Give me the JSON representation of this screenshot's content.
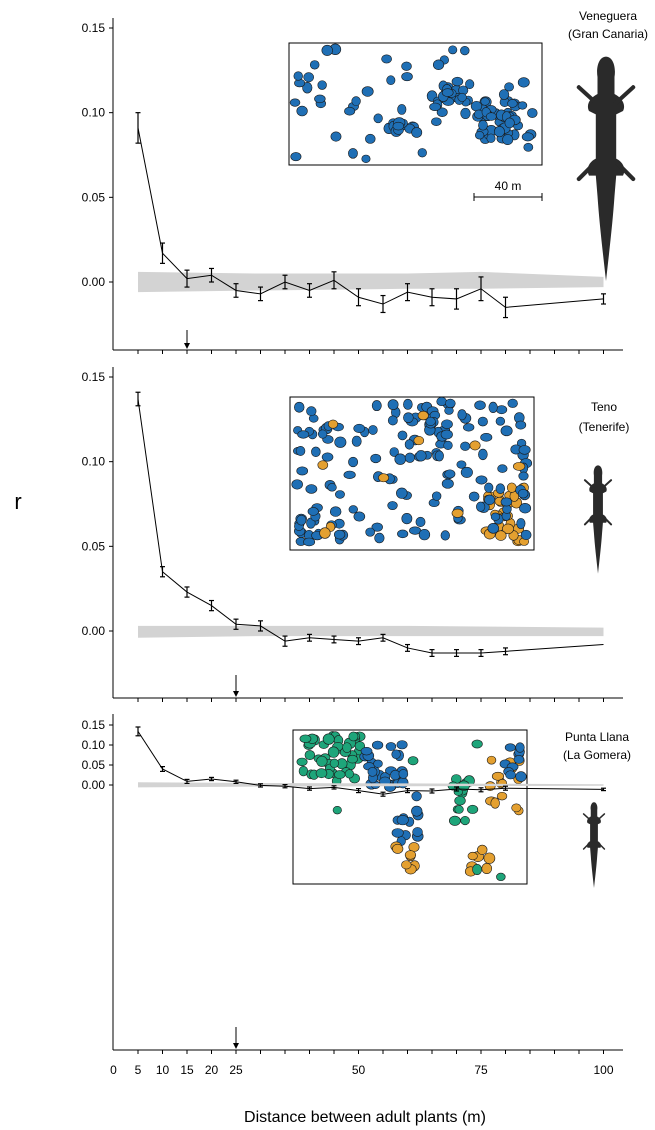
{
  "chart_data": {
    "type": "line",
    "ylabel": "r",
    "xlabel": "Distance between adult plants (m)",
    "xlim": [
      0,
      103
    ],
    "x_ticks": [
      0,
      5,
      10,
      15,
      20,
      25,
      50,
      75,
      100
    ],
    "y_tick_labels": [
      "0.00",
      "0.05",
      "0.10",
      "0.15"
    ],
    "colors": {
      "line": "#000000",
      "band": "#d3d3d3",
      "blue": "#1f6fb5",
      "orange": "#e4a030",
      "green": "#1ea57a",
      "lizard": "#2a2a2a"
    },
    "panels": [
      {
        "name": "Veneguera",
        "name_sub": "(Gran Canaria)",
        "scale_label": "40 m",
        "ylim": [
          -0.04,
          0.16
        ],
        "x": [
          5,
          10,
          15,
          20,
          25,
          30,
          35,
          40,
          45,
          50,
          55,
          60,
          65,
          70,
          75,
          80,
          100
        ],
        "y": [
          0.091,
          0.017,
          0.002,
          0.004,
          -0.005,
          -0.007,
          0.0,
          -0.005,
          0.001,
          -0.009,
          -0.013,
          -0.006,
          -0.009,
          -0.01,
          -0.004,
          -0.015,
          -0.01
        ],
        "err": [
          0.009,
          0.006,
          0.005,
          0.004,
          0.004,
          0.004,
          0.004,
          0.004,
          0.005,
          0.005,
          0.005,
          0.005,
          0.005,
          0.006,
          0.007,
          0.006,
          0.003
        ],
        "band_x": [
          5,
          30,
          60,
          75,
          100
        ],
        "band_hi": [
          0.006,
          0.005,
          0.005,
          0.006,
          0.003
        ],
        "band_lo": [
          -0.006,
          -0.005,
          -0.004,
          -0.004,
          -0.003
        ],
        "arrow_x": 15
      },
      {
        "name": "Teno",
        "name_sub": "(Tenerife)",
        "ylim": [
          -0.04,
          0.155
        ],
        "x": [
          5,
          10,
          15,
          20,
          25,
          30,
          35,
          40,
          45,
          50,
          55,
          60,
          65,
          70,
          75,
          80,
          100
        ],
        "y": [
          0.137,
          0.035,
          0.023,
          0.015,
          0.004,
          0.003,
          -0.006,
          -0.004,
          -0.005,
          -0.006,
          -0.004,
          -0.01,
          -0.013,
          -0.013,
          -0.013,
          -0.012,
          -0.008
        ],
        "err": [
          0.004,
          0.003,
          0.003,
          0.003,
          0.003,
          0.003,
          0.003,
          0.002,
          0.002,
          0.002,
          0.002,
          0.002,
          0.002,
          0.002,
          0.002,
          0.002,
          0.0
        ],
        "band_x": [
          5,
          30,
          60,
          100
        ],
        "band_hi": [
          0.003,
          0.003,
          0.003,
          0.002
        ],
        "band_lo": [
          -0.004,
          -0.003,
          -0.003,
          -0.003
        ],
        "arrow_x": 25
      },
      {
        "name": "Punta Llana",
        "name_sub": "(La Gomera)",
        "ylim": [
          -0.045,
          0.155
        ],
        "x": [
          5,
          10,
          15,
          20,
          25,
          30,
          35,
          40,
          45,
          50,
          55,
          60,
          65,
          70,
          75,
          80,
          100
        ],
        "y": [
          0.134,
          0.04,
          0.009,
          0.015,
          0.008,
          -0.001,
          -0.003,
          -0.009,
          -0.006,
          -0.014,
          -0.023,
          -0.014,
          -0.015,
          -0.01,
          -0.012,
          -0.008,
          -0.011
        ],
        "err": [
          0.011,
          0.006,
          0.005,
          0.004,
          0.004,
          0.004,
          0.004,
          0.004,
          0.004,
          0.005,
          0.005,
          0.005,
          0.005,
          0.005,
          0.005,
          0.005,
          0.003
        ],
        "band_x": [
          5,
          30,
          60,
          100
        ],
        "band_hi": [
          0.007,
          0.005,
          0.004,
          0.002
        ],
        "band_lo": [
          -0.006,
          -0.004,
          -0.003,
          -0.002
        ],
        "arrow_x": 25
      }
    ]
  }
}
